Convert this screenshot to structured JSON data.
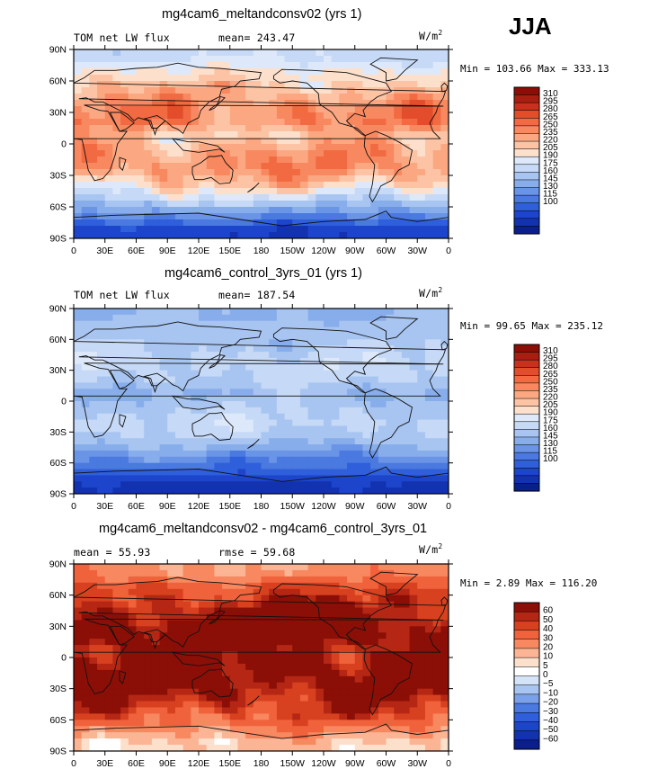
{
  "season": "JJA",
  "colors": {
    "warm": [
      "#fde0cc",
      "#fcc4a4",
      "#fba882",
      "#f8885f",
      "#f26a42",
      "#e34d2b",
      "#c8321d",
      "#a81f12",
      "#8b0f07"
    ],
    "cool": [
      "#dde9fa",
      "#c6d9f6",
      "#a8c5f1",
      "#88adeb",
      "#6a94e6",
      "#4a79e0",
      "#2f5fda",
      "#1c45cc",
      "#1232b0",
      "#0a1e8c"
    ],
    "diff": [
      "#0a1e8c",
      "#1232b0",
      "#1c45cc",
      "#2f5fda",
      "#4a79e0",
      "#7aa0ea",
      "#a8c5f1",
      "#d4e3f8",
      "#ffffff",
      "#fde0cc",
      "#fbb595",
      "#f8885f",
      "#f0623b",
      "#d8411f",
      "#b52714",
      "#8b0f07"
    ]
  },
  "lat_ticks": [
    "90N",
    "60N",
    "30N",
    "0",
    "30S",
    "60S",
    "90S"
  ],
  "lon_ticks": [
    "0",
    "30E",
    "60E",
    "90E",
    "120E",
    "150E",
    "180",
    "150W",
    "120W",
    "90W",
    "60W",
    "30W",
    "0"
  ],
  "abs_levels": [
    "310",
    "295",
    "280",
    "265",
    "250",
    "235",
    "220",
    "205",
    "190",
    "175",
    "160",
    "145",
    "130",
    "115",
    "100"
  ],
  "diff_levels": [
    "60",
    "50",
    "40",
    "30",
    "20",
    "10",
    "5",
    "0",
    "−5",
    "−10",
    "−20",
    "−30",
    "−40",
    "−50",
    "−60"
  ],
  "panels": [
    {
      "title": "mg4cam6_meltandconsv02 (yrs 1)",
      "left_label": "TOM net LW flux",
      "center_label": "mean= 243.47",
      "units": "W/m",
      "units_exp": "2",
      "minmax": "Min = 103.66 Max = 333.13"
    },
    {
      "title": "mg4cam6_control_3yrs_01 (yrs 1)",
      "left_label": "TOM net LW flux",
      "center_label": "mean= 187.54",
      "units": "W/m",
      "units_exp": "2",
      "minmax": "Min =  99.65 Max = 235.12"
    },
    {
      "title": "mg4cam6_meltandconsv02 - mg4cam6_control_3yrs_01",
      "left_label": "mean =  55.93",
      "center_label": "rmse =  59.68",
      "units": "W/m",
      "units_exp": "2",
      "minmax": "Min =   2.89 Max = 116.20"
    }
  ],
  "chart_data": [
    {
      "type": "heatmap",
      "title": "mg4cam6_meltandconsv02 (yrs 1)",
      "variable": "TOM net LW flux",
      "units": "W/m2",
      "mean": 243.47,
      "min": 103.66,
      "max": 333.13,
      "x_range": [
        0,
        360
      ],
      "y_range": [
        -90,
        90
      ],
      "x_ticks": [
        "0",
        "30E",
        "60E",
        "90E",
        "120E",
        "150E",
        "180",
        "150W",
        "120W",
        "90W",
        "60W",
        "30W",
        "0"
      ],
      "y_ticks": [
        "90N",
        "60N",
        "30N",
        "0",
        "30S",
        "60S",
        "90S"
      ],
      "contour_levels": [
        100,
        115,
        130,
        145,
        160,
        175,
        190,
        205,
        220,
        235,
        250,
        265,
        280,
        295,
        310
      ],
      "zonal_mean_by_band": [
        {
          "lat_band": "90N-75N",
          "value": 215
        },
        {
          "lat_band": "75N-60N",
          "value": 240
        },
        {
          "lat_band": "60N-45N",
          "value": 262
        },
        {
          "lat_band": "45N-30N",
          "value": 282
        },
        {
          "lat_band": "30N-15N",
          "value": 290
        },
        {
          "lat_band": "15N-0",
          "value": 255
        },
        {
          "lat_band": "0-15S",
          "value": 278
        },
        {
          "lat_band": "15S-30S",
          "value": 285
        },
        {
          "lat_band": "30S-45S",
          "value": 258
        },
        {
          "lat_band": "45S-60S",
          "value": 212
        },
        {
          "lat_band": "60S-75S",
          "value": 165
        },
        {
          "lat_band": "75S-90S",
          "value": 118
        }
      ]
    },
    {
      "type": "heatmap",
      "title": "mg4cam6_control_3yrs_01 (yrs 1)",
      "variable": "TOM net LW flux",
      "units": "W/m2",
      "mean": 187.54,
      "min": 99.65,
      "max": 235.12,
      "x_range": [
        0,
        360
      ],
      "y_range": [
        -90,
        90
      ],
      "contour_levels": [
        100,
        115,
        130,
        145,
        160,
        175,
        190,
        205,
        220,
        235,
        250,
        265,
        280,
        295,
        310
      ],
      "zonal_mean_by_band": [
        {
          "lat_band": "90N-75N",
          "value": 190
        },
        {
          "lat_band": "75N-60N",
          "value": 198
        },
        {
          "lat_band": "60N-45N",
          "value": 203
        },
        {
          "lat_band": "45N-30N",
          "value": 212
        },
        {
          "lat_band": "30N-15N",
          "value": 208
        },
        {
          "lat_band": "15N-0",
          "value": 190
        },
        {
          "lat_band": "0-15S",
          "value": 203
        },
        {
          "lat_band": "15S-30S",
          "value": 213
        },
        {
          "lat_band": "30S-45S",
          "value": 197
        },
        {
          "lat_band": "45S-60S",
          "value": 168
        },
        {
          "lat_band": "60S-75S",
          "value": 138
        },
        {
          "lat_band": "75S-90S",
          "value": 110
        }
      ]
    },
    {
      "type": "heatmap",
      "title": "mg4cam6_meltandconsv02 - mg4cam6_control_3yrs_01",
      "variable": "difference",
      "units": "W/m2",
      "mean": 55.93,
      "rmse": 59.68,
      "min": 2.89,
      "max": 116.2,
      "x_range": [
        0,
        360
      ],
      "y_range": [
        -90,
        90
      ],
      "contour_levels": [
        -60,
        -50,
        -40,
        -30,
        -20,
        -10,
        -5,
        0,
        5,
        10,
        20,
        30,
        40,
        50,
        60
      ],
      "zonal_mean_by_band": [
        {
          "lat_band": "90N-75N",
          "value": 22
        },
        {
          "lat_band": "75N-60N",
          "value": 40
        },
        {
          "lat_band": "60N-45N",
          "value": 55
        },
        {
          "lat_band": "45N-30N",
          "value": 68
        },
        {
          "lat_band": "30N-15N",
          "value": 80
        },
        {
          "lat_band": "15N-0",
          "value": 62
        },
        {
          "lat_band": "0-15S",
          "value": 72
        },
        {
          "lat_band": "15S-30S",
          "value": 70
        },
        {
          "lat_band": "30S-45S",
          "value": 60
        },
        {
          "lat_band": "45S-60S",
          "value": 45
        },
        {
          "lat_band": "60S-75S",
          "value": 28
        },
        {
          "lat_band": "75S-90S",
          "value": 10
        }
      ]
    }
  ]
}
